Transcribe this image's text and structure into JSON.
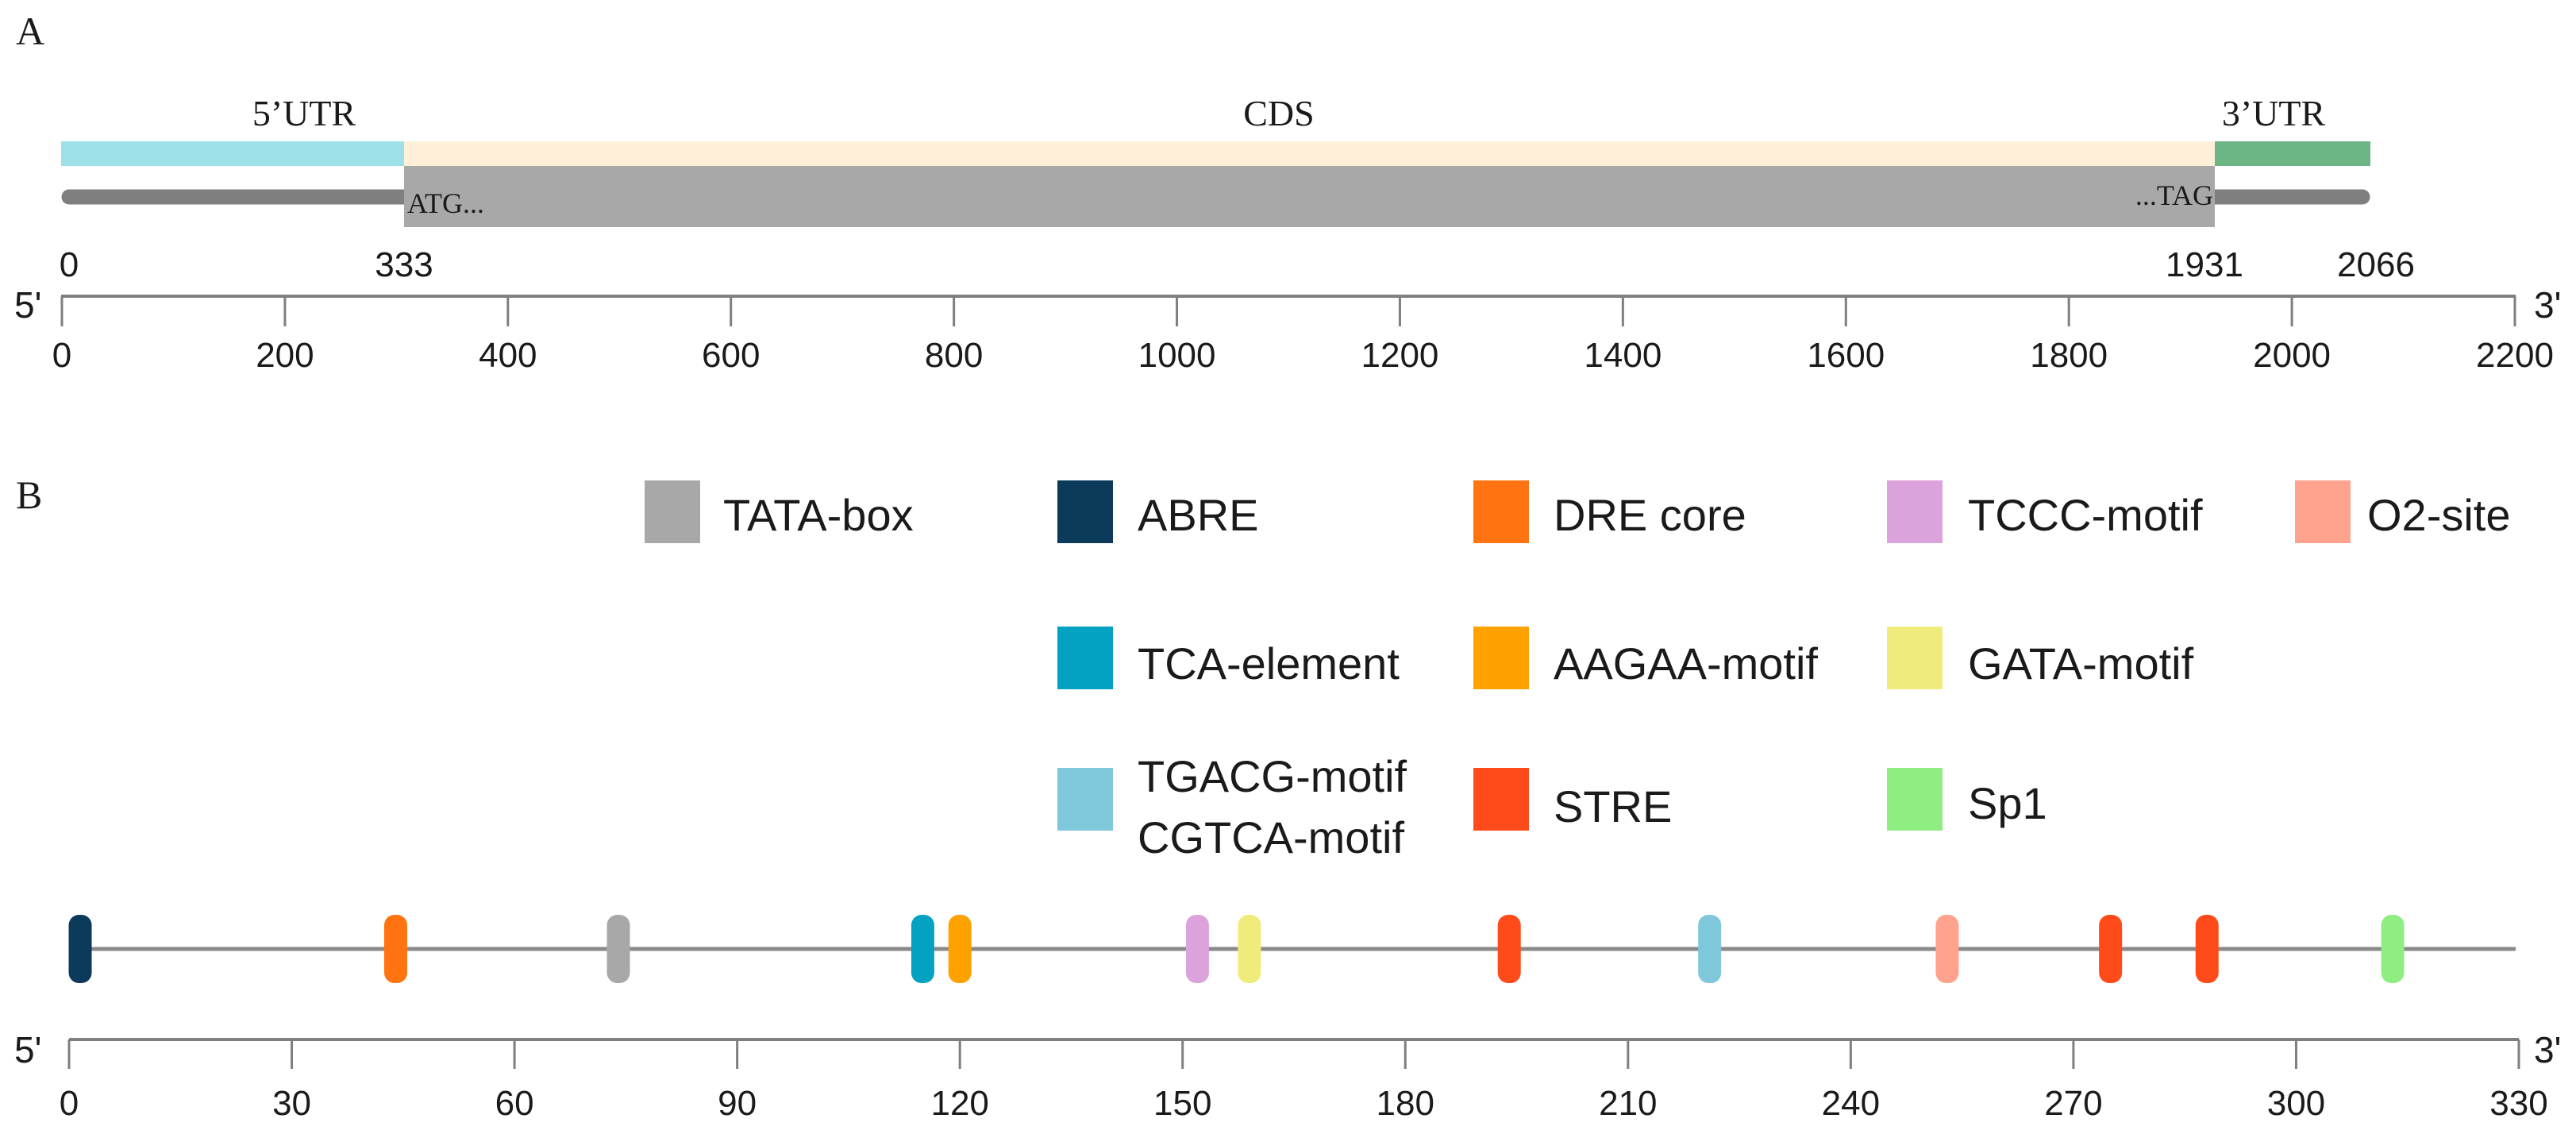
{
  "panel_a": {
    "label": "A",
    "regions": {
      "utr5": {
        "label": "5’UTR",
        "color": "#9de1e8"
      },
      "cds": {
        "label": "CDS",
        "color": "#fdefd8"
      },
      "utr3": {
        "label": "3’UTR",
        "color": "#6cb585"
      }
    },
    "start_codon_label": "ATG...",
    "stop_codon_label": "...TAG",
    "boundaries": [
      0,
      333,
      1931,
      2066
    ],
    "axis": {
      "left_end": "5'",
      "right_end": "3'",
      "range": [
        0,
        2200
      ],
      "ticks": [
        0,
        200,
        400,
        600,
        800,
        1000,
        1200,
        1400,
        1600,
        1800,
        2000,
        2200
      ]
    }
  },
  "panel_b": {
    "label": "B",
    "legend": [
      {
        "label": "TATA-box",
        "color": "#a8a8a8"
      },
      {
        "label": "ABRE",
        "color": "#0c3a5a"
      },
      {
        "label": "DRE core",
        "color": "#ff7311"
      },
      {
        "label": "TCCC-motif",
        "color": "#dca2dc"
      },
      {
        "label": "O2-site",
        "color": "#ffa38e"
      },
      {
        "label": "TCA-element",
        "color": "#03a2c3"
      },
      {
        "label": "AAGAA-motif",
        "color": "#ffa200"
      },
      {
        "label": "GATA-motif",
        "color": "#f0ec7c"
      },
      {
        "label": "TGACG-motif",
        "label_line2": "CGTCA-motif",
        "color": "#7fc8db"
      },
      {
        "label": "STRE",
        "color": "#ff4a1a"
      },
      {
        "label": "Sp1",
        "color": "#8fee82"
      }
    ],
    "elements": [
      {
        "legend": 1,
        "position": 1.5
      },
      {
        "legend": 2,
        "position": 44
      },
      {
        "legend": 0,
        "position": 74
      },
      {
        "legend": 5,
        "position": 115
      },
      {
        "legend": 6,
        "position": 120
      },
      {
        "legend": 3,
        "position": 152
      },
      {
        "legend": 7,
        "position": 159
      },
      {
        "legend": 9,
        "position": 194
      },
      {
        "legend": 8,
        "position": 221
      },
      {
        "legend": 4,
        "position": 253
      },
      {
        "legend": 9,
        "position": 275
      },
      {
        "legend": 9,
        "position": 288
      },
      {
        "legend": 10,
        "position": 313
      }
    ],
    "axis": {
      "left_end": "5'",
      "right_end": "3'",
      "range": [
        0,
        330
      ],
      "ticks": [
        0,
        30,
        60,
        90,
        120,
        150,
        180,
        210,
        240,
        270,
        300,
        330
      ]
    }
  }
}
